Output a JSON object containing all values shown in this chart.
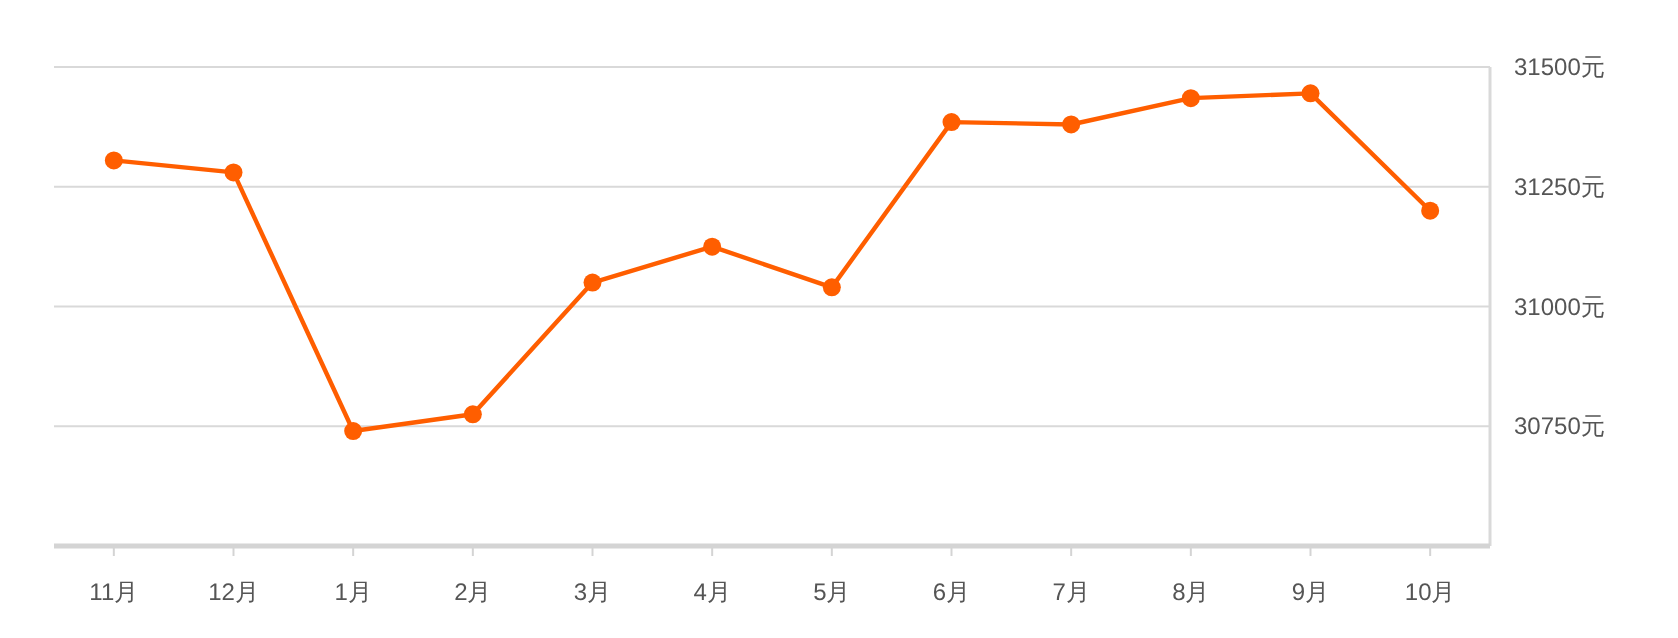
{
  "chart_data": {
    "type": "line",
    "categories": [
      "11月",
      "12月",
      "1月",
      "2月",
      "3月",
      "4月",
      "5月",
      "6月",
      "7月",
      "8月",
      "9月",
      "10月"
    ],
    "series": [
      {
        "color": "#ff5e00",
        "values": [
          31305,
          31280,
          30740,
          30775,
          31050,
          31125,
          31040,
          31385,
          31380,
          31435,
          31445,
          31200
        ]
      }
    ],
    "ylim": [
      30500,
      31500
    ],
    "yticks": [
      {
        "value": 30750,
        "label": "30750元"
      },
      {
        "value": 31000,
        "label": "31000元"
      },
      {
        "value": 31250,
        "label": "31250元"
      },
      {
        "value": 31500,
        "label": "31500元"
      }
    ],
    "grid": "y",
    "marker": "circle",
    "line_style": "solid"
  }
}
